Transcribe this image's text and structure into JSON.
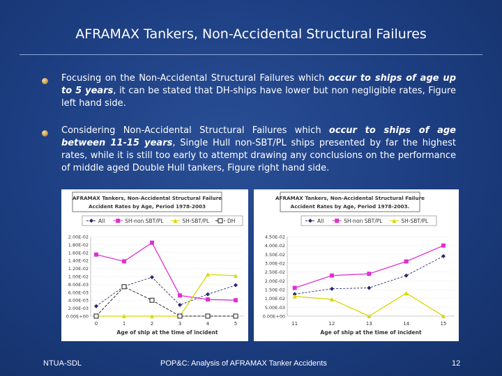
{
  "slide": {
    "title": "AFRAMAX Tankers, Non-Accidental Structural Failures",
    "bullets": [
      {
        "segments": [
          {
            "text": "Focusing on the Non-Accidental Structural Failures which ",
            "em": false
          },
          {
            "text": "occur to ships of age up to 5 years",
            "em": true
          },
          {
            "text": ", it can be stated that DH-ships have lower but non negligible rates, Figure left hand side.",
            "em": false
          }
        ]
      },
      {
        "segments": [
          {
            "text": "Considering Non-Accidental Structural Failures which ",
            "em": false
          },
          {
            "text": "occur to ships of age between 11-15 years",
            "em": true
          },
          {
            "text": ", Single Hull non-SBT/PL ships presented by far the highest rates, while it is still too early to attempt drawing any conclusions on the performance of middle aged Double Hull tankers, Figure right hand side.",
            "em": false
          }
        ]
      }
    ],
    "footer": {
      "left": "NTUA-SDL",
      "center": "POP&C: Analysis of AFRAMAX Tanker Accidents",
      "page": "12"
    }
  },
  "colors": {
    "All": "#2a2a6a",
    "SH-non SBT/PL": "#e030d0",
    "SH-SBT/PL": "#d8d800",
    "DH": "#1a1a1a"
  },
  "chart_data": [
    {
      "type": "line",
      "title": "AFRAMAX Tankers, Non-Accidental Structural Failure",
      "subtitle": "Accident Rates by Age, Period 1978-2003",
      "xlabel": "Age of ship at the time of incident",
      "ylabel": "",
      "x": [
        0,
        1,
        2,
        3,
        4,
        5
      ],
      "ylim": [
        0,
        0.02
      ],
      "yticks": [
        "0.00E+00",
        "2.00E-03",
        "4.00E-03",
        "6.00E-03",
        "8.00E-03",
        "1.00E-02",
        "1.20E-02",
        "1.40E-02",
        "1.60E-02",
        "1.80E-02",
        "2.00E-02"
      ],
      "series": [
        {
          "name": "All",
          "values": [
            0.0025,
            0.0075,
            0.0098,
            0.0028,
            0.0055,
            0.0078
          ],
          "marker": "diamond"
        },
        {
          "name": "SH-non SBT/PL",
          "values": [
            0.0155,
            0.0138,
            0.0185,
            0.0052,
            0.0042,
            0.004
          ],
          "marker": "square"
        },
        {
          "name": "SH-SBT/PL",
          "values": [
            0.0,
            0.0,
            0.0,
            0.0,
            0.0105,
            0.0102
          ],
          "marker": "triangle"
        },
        {
          "name": "DH",
          "values": [
            0.0,
            0.0074,
            0.004,
            0.0,
            0.0,
            0.0
          ],
          "marker": "square-open"
        }
      ]
    },
    {
      "type": "line",
      "title": "AFRAMAX Tankers, Non-Accidental Structural Failure",
      "subtitle": "Accident Rates by Age, Period 1978-2003.",
      "xlabel": "Age of ship at the time of incident",
      "ylabel": "",
      "x": [
        11,
        12,
        13,
        14,
        15
      ],
      "ylim": [
        0,
        0.045
      ],
      "yticks": [
        "0.00E+00",
        "5.00E-03",
        "1.00E-02",
        "1.50E-02",
        "2.00E-02",
        "2.50E-02",
        "3.00E-02",
        "3.50E-02",
        "4.00E-02",
        "4.50E-02"
      ],
      "series": [
        {
          "name": "All",
          "values": [
            0.0125,
            0.0155,
            0.016,
            0.023,
            0.034
          ],
          "marker": "diamond"
        },
        {
          "name": "SH-non SBT/PL",
          "values": [
            0.016,
            0.023,
            0.024,
            0.031,
            0.04
          ],
          "marker": "square"
        },
        {
          "name": "SH-SBT/PL",
          "values": [
            0.0112,
            0.0095,
            0.0,
            0.013,
            0.0
          ],
          "marker": "triangle"
        }
      ]
    }
  ]
}
